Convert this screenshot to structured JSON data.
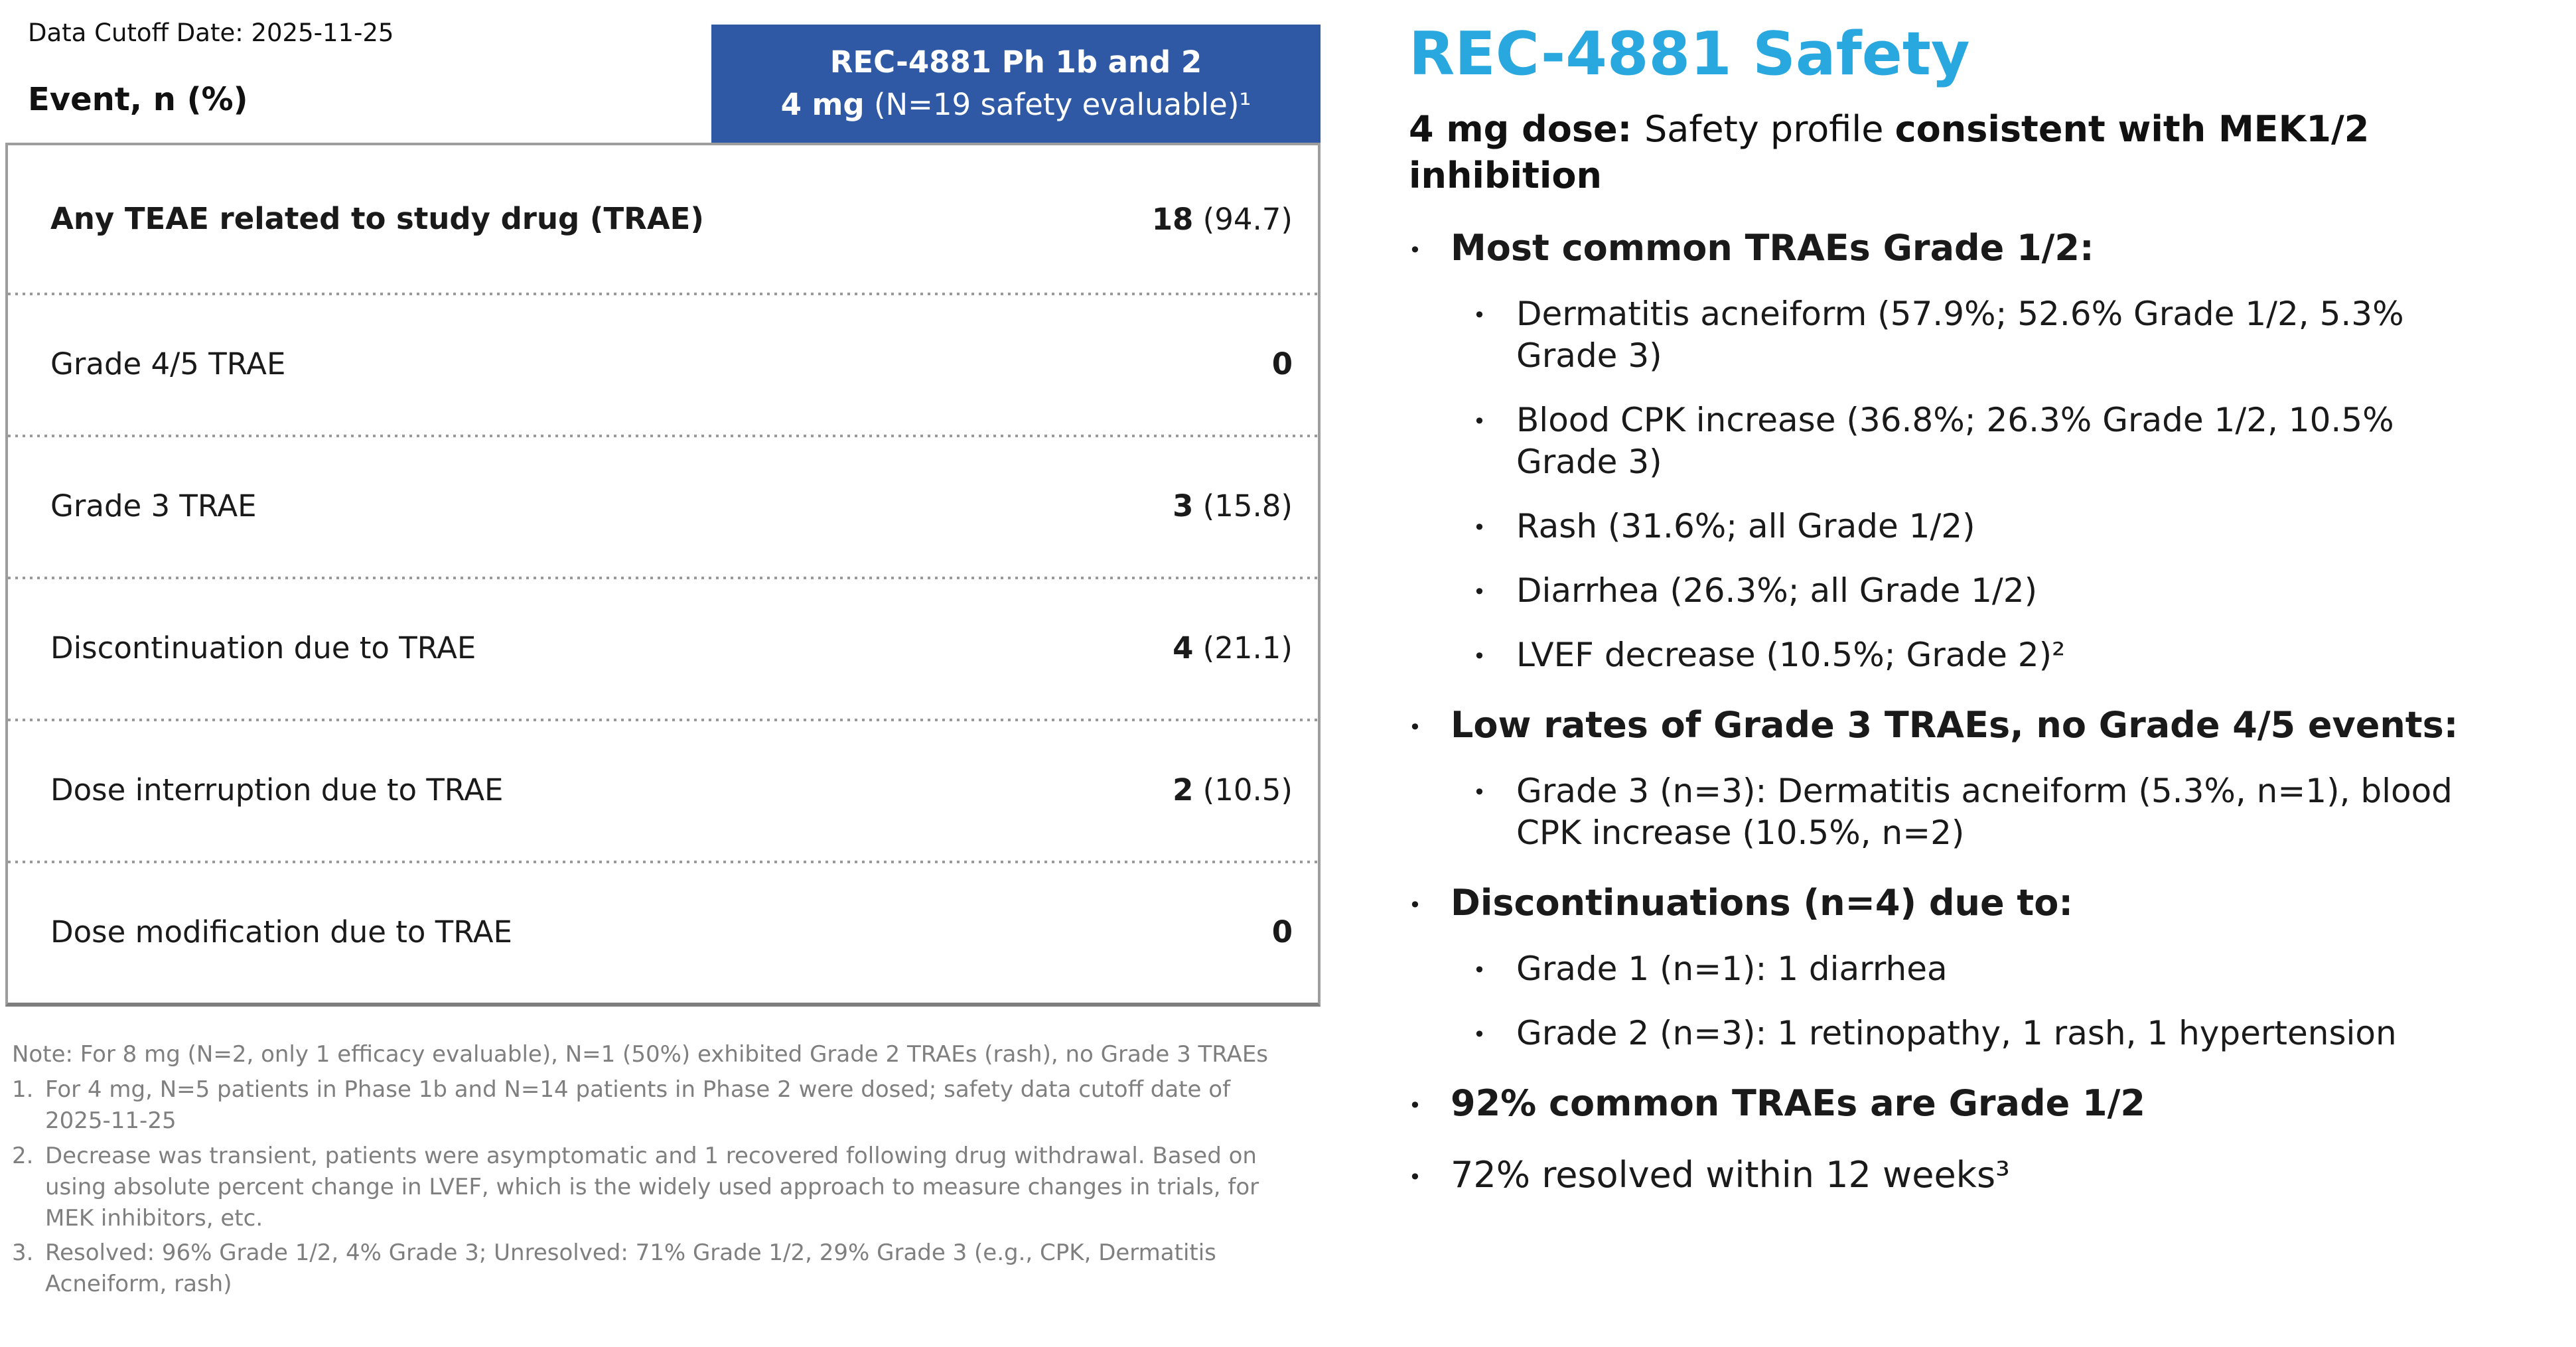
{
  "table": {
    "data_cutoff": "Data Cutoff Date: 2025-11-25",
    "event_header": "Event, n (%)",
    "column_header": {
      "line1": "REC-4881 Ph 1b and 2",
      "line2_bold": "4 mg",
      "line2_rest": " (N=19 safety evaluable)¹"
    },
    "rows": [
      {
        "label": "Any TEAE related to study drug (TRAE)",
        "n": "18",
        "pct": " (94.7)"
      },
      {
        "label": "Grade 4/5 TRAE",
        "n": "0",
        "pct": ""
      },
      {
        "label": "Grade 3 TRAE",
        "n": "3",
        "pct": " (15.8)"
      },
      {
        "label": "Discontinuation due to TRAE",
        "n": "4",
        "pct": " (21.1)"
      },
      {
        "label": "Dose interruption due to TRAE",
        "n": "2",
        "pct": " (10.5)"
      },
      {
        "label": "Dose modification due to TRAE",
        "n": "0",
        "pct": ""
      }
    ],
    "note": "Note: For 8 mg (N=2, only 1 efficacy evaluable), N=1 (50%) exhibited Grade 2 TRAEs (rash), no Grade 3 TRAEs",
    "footnotes": [
      {
        "num": "1.",
        "text": "For 4 mg, N=5 patients in Phase 1b and N=14 patients in Phase 2 were dosed; safety data cutoff date of 2025-11-25"
      },
      {
        "num": "2.",
        "text": "Decrease was transient, patients were asymptomatic and 1 recovered following drug withdrawal. Based on using absolute percent change in LVEF, which is the widely used approach to measure changes in trials, for MEK inhibitors, etc."
      },
      {
        "num": "3.",
        "text": "Resolved: 96% Grade 1/2, 4% Grade 3; Unresolved: 71% Grade 1/2, 29% Grade 3 (e.g., CPK, Dermatitis Acneiform, rash)"
      }
    ]
  },
  "safety": {
    "title": "REC-4881 Safety",
    "subtitle": {
      "seg1_bold": "4 mg dose: ",
      "seg2": "Safety profile ",
      "seg3_bold": "consistent with MEK1/2 inhibition"
    },
    "bullets": [
      {
        "level": 1,
        "bold": true,
        "text": "Most common TRAEs Grade 1/2:"
      },
      {
        "level": 2,
        "bold": false,
        "text": "Dermatitis acneiform (57.9%; 52.6% Grade 1/2, 5.3% Grade 3)"
      },
      {
        "level": 2,
        "bold": false,
        "text": "Blood CPK increase (36.8%; 26.3% Grade 1/2, 10.5% Grade 3)"
      },
      {
        "level": 2,
        "bold": false,
        "text": "Rash (31.6%; all Grade 1/2)"
      },
      {
        "level": 2,
        "bold": false,
        "text": "Diarrhea (26.3%; all Grade 1/2)"
      },
      {
        "level": 2,
        "bold": false,
        "text": "LVEF decrease (10.5%; Grade 2)²"
      },
      {
        "level": 1,
        "bold": true,
        "text": "Low rates of Grade 3 TRAEs, no Grade 4/5 events:"
      },
      {
        "level": 2,
        "bold": false,
        "text": "Grade 3 (n=3): Dermatitis acneiform (5.3%, n=1), blood CPK increase (10.5%, n=2)"
      },
      {
        "level": 1,
        "bold": true,
        "text": "Discontinuations (n=4) due to:"
      },
      {
        "level": 2,
        "bold": false,
        "text": "Grade 1 (n=1): 1 diarrhea"
      },
      {
        "level": 2,
        "bold": false,
        "text": "Grade 2 (n=3): 1 retinopathy, 1 rash, 1 hypertension"
      },
      {
        "level": 1,
        "bold": true,
        "text": "92% common TRAEs are Grade 1/2"
      },
      {
        "level": 1,
        "bold": false,
        "text": "72% resolved within 12 weeks³"
      }
    ]
  },
  "colors": {
    "header_blue": "#2F58A5",
    "title_cyan": "#29A8E0",
    "note_gray": "#7f7f7f",
    "border_gray": "#9d9d9d"
  }
}
